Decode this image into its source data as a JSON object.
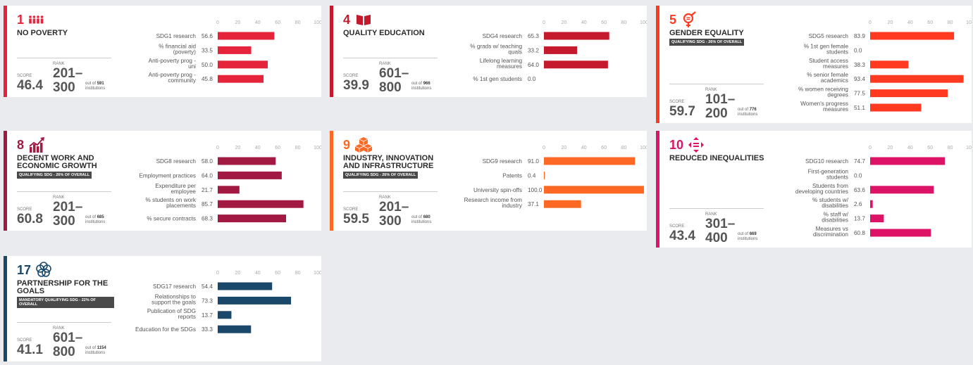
{
  "axis": {
    "ticks": [
      "0",
      "20",
      "40",
      "60",
      "80",
      "100"
    ],
    "max": 100
  },
  "score_label": "SCORE",
  "rank_label": "RANK",
  "cards": [
    {
      "id": "sdg1",
      "number": "1",
      "title": "NO POVERTY",
      "qualifying": "",
      "color": "#e5243b",
      "icon": "people-icon",
      "score": "46.4",
      "rank_top": "201–",
      "rank_bottom": "300",
      "out_of_prefix": "out of",
      "out_of": "591",
      "out_of_suffix": "institutions",
      "chart_data": {
        "type": "bar",
        "categories": [
          "SDG1 research",
          "% financial aid (poverty)",
          "Anti-poverty prog - uni",
          "Anti-poverty prog - community"
        ],
        "values": [
          56.6,
          33.5,
          50.0,
          45.8
        ],
        "value_labels": [
          "56.6",
          "33.5",
          "50.0",
          "45.8"
        ],
        "xlim": [
          0,
          100
        ]
      }
    },
    {
      "id": "sdg4",
      "number": "4",
      "title": "QUALITY EDUCATION",
      "qualifying": "",
      "color": "#c5192d",
      "icon": "book-icon",
      "score": "39.9",
      "rank_top": "601–",
      "rank_bottom": "800",
      "out_of_prefix": "out of",
      "out_of": "966",
      "out_of_suffix": "institutions",
      "chart_data": {
        "type": "bar",
        "categories": [
          "SDG4 research",
          "% grads w/ teaching quals",
          "Lifelong learning measures",
          "% 1st gen students"
        ],
        "values": [
          65.3,
          33.2,
          64.0,
          0.0
        ],
        "value_labels": [
          "65.3",
          "33.2",
          "64.0",
          "0.0"
        ],
        "xlim": [
          0,
          100
        ]
      }
    },
    {
      "id": "sdg5",
      "number": "5",
      "title": "GENDER EQUALITY",
      "qualifying": "QUALIFYING SDG - 26% OF OVERALL",
      "color": "#ff3a21",
      "icon": "gender-icon",
      "score": "59.7",
      "rank_top": "101–",
      "rank_bottom": "200",
      "out_of_prefix": "out of",
      "out_of": "776",
      "out_of_suffix": "institutions",
      "chart_data": {
        "type": "bar",
        "categories": [
          "SDG5 research",
          "% 1st gen female students",
          "Student access measures",
          "% senior female academics",
          "% women receiving degrees",
          "Women's progress measures"
        ],
        "values": [
          83.9,
          0.0,
          38.3,
          93.4,
          77.5,
          51.1
        ],
        "value_labels": [
          "83.9",
          "0.0",
          "38.3",
          "93.4",
          "77.5",
          "51.1"
        ],
        "xlim": [
          0,
          100
        ]
      }
    },
    {
      "id": "sdg8",
      "number": "8",
      "title": "DECENT WORK AND ECONOMIC GROWTH",
      "qualifying": "QUALIFYING SDG - 26% OF OVERALL",
      "color": "#a21942",
      "icon": "growth-icon",
      "score": "60.8",
      "rank_top": "201–",
      "rank_bottom": "300",
      "out_of_prefix": "out of",
      "out_of": "685",
      "out_of_suffix": "institutions",
      "chart_data": {
        "type": "bar",
        "categories": [
          "SDG8 research",
          "Employment practices",
          "Expenditure per employee",
          "% students on work placements",
          "% secure contracts"
        ],
        "values": [
          58.0,
          64.0,
          21.7,
          85.7,
          68.3
        ],
        "value_labels": [
          "58.0",
          "64.0",
          "21.7",
          "85.7",
          "68.3"
        ],
        "xlim": [
          0,
          100
        ]
      }
    },
    {
      "id": "sdg9",
      "number": "9",
      "title": "INDUSTRY, INNOVATION AND INFRASTRUCTURE",
      "qualifying": "QUALIFYING SDG - 26% OF OVERALL",
      "color": "#fd6925",
      "icon": "cubes-icon",
      "score": "59.5",
      "rank_top": "201–",
      "rank_bottom": "300",
      "out_of_prefix": "out of",
      "out_of": "680",
      "out_of_suffix": "institutions",
      "chart_data": {
        "type": "bar",
        "categories": [
          "SDG9 research",
          "Patents",
          "University spin-offs",
          "Research income from industry"
        ],
        "values": [
          91.0,
          0.4,
          100.0,
          37.1
        ],
        "value_labels": [
          "91.0",
          "0.4",
          "100.0",
          "37.1"
        ],
        "xlim": [
          0,
          100
        ]
      }
    },
    {
      "id": "sdg10",
      "number": "10",
      "title": "REDUCED INEQUALITIES",
      "qualifying": "",
      "color": "#dd1367",
      "icon": "equality-icon",
      "score": "43.4",
      "rank_top": "301–",
      "rank_bottom": "400",
      "out_of_prefix": "out of",
      "out_of": "669",
      "out_of_suffix": "institutions",
      "chart_data": {
        "type": "bar",
        "categories": [
          "SDG10 research",
          "First-generation students",
          "Students from developing countries",
          "% students w/ disabilities",
          "% staff w/ disabilities",
          "Measures vs discrimination"
        ],
        "values": [
          74.7,
          0.0,
          63.6,
          2.6,
          13.7,
          60.8
        ],
        "value_labels": [
          "74.7",
          "0.0",
          "63.6",
          "2.6",
          "13.7",
          "60.8"
        ],
        "xlim": [
          0,
          100
        ]
      }
    },
    {
      "id": "sdg17",
      "number": "17",
      "title": "PARTNERSHIP FOR THE GOALS",
      "qualifying": "MANDATORY QUALIFYING SDG - 22% OF OVERALL",
      "color": "#19486a",
      "icon": "partnership-icon",
      "score": "41.1",
      "rank_top": "601–",
      "rank_bottom": "800",
      "out_of_prefix": "out of",
      "out_of": "1154",
      "out_of_suffix": "institutions",
      "chart_data": {
        "type": "bar",
        "categories": [
          "SDG17 research",
          "Relationships to support the goals",
          "Publication of SDG reports",
          "Education for the SDGs"
        ],
        "values": [
          54.4,
          73.3,
          13.7,
          33.3
        ],
        "value_labels": [
          "54.4",
          "73.3",
          "13.7",
          "33.3"
        ],
        "xlim": [
          0,
          100
        ]
      }
    }
  ]
}
